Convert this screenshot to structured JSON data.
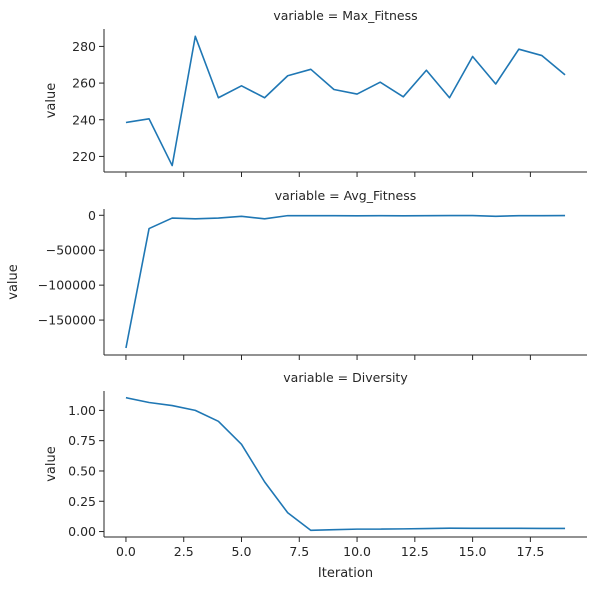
{
  "chart_data": [
    {
      "type": "line",
      "title": "variable = Max_Fitness",
      "xlabel": "",
      "ylabel": "value",
      "x": [
        0,
        1,
        2,
        3,
        4,
        5,
        6,
        7,
        8,
        9,
        10,
        11,
        12,
        13,
        14,
        15,
        16,
        17,
        18,
        19
      ],
      "series": [
        {
          "values": [
            238.5,
            240.5,
            215,
            285.5,
            252,
            258.5,
            252,
            264,
            267.5,
            256.5,
            254,
            260.5,
            252.5,
            267,
            252,
            274.5,
            259.5,
            278.5,
            275,
            264.5
          ]
        }
      ],
      "xlim": [
        -0.95,
        19.95
      ],
      "ylim": [
        211.5,
        289.5
      ],
      "yticks": [
        220,
        240,
        260,
        280
      ],
      "ytick_labels": [
        "220",
        "240",
        "260",
        "280"
      ],
      "xticks": [
        0,
        2.5,
        5,
        7.5,
        10,
        12.5,
        15,
        17.5
      ],
      "xtick_labels": [],
      "grid": false,
      "color": "#1f77b4"
    },
    {
      "type": "line",
      "title": "variable = Avg_Fitness",
      "xlabel": "",
      "ylabel": "value",
      "x": [
        0,
        1,
        2,
        3,
        4,
        5,
        6,
        7,
        8,
        9,
        10,
        11,
        12,
        13,
        14,
        15,
        16,
        17,
        18,
        19
      ],
      "series": [
        {
          "values": [
            -190000,
            -19000,
            -4000,
            -5000,
            -4000,
            -1500,
            -5000,
            -500,
            -500,
            -500,
            -800,
            -500,
            -700,
            -500,
            -400,
            -400,
            -1500,
            -500,
            -600,
            -400
          ]
        }
      ],
      "xlim": [
        -0.95,
        19.95
      ],
      "ylim": [
        -200000,
        9000
      ],
      "yticks": [
        -150000,
        -100000,
        -50000,
        0
      ],
      "ytick_labels": [
        "−150000",
        "−100000",
        "−50000",
        "0"
      ],
      "xticks": [
        0,
        2.5,
        5,
        7.5,
        10,
        12.5,
        15,
        17.5
      ],
      "xtick_labels": [],
      "grid": false,
      "color": "#1f77b4"
    },
    {
      "type": "line",
      "title": "variable = Diversity",
      "xlabel": "Iteration",
      "ylabel": "value",
      "x": [
        0,
        1,
        2,
        3,
        4,
        5,
        6,
        7,
        8,
        9,
        10,
        11,
        12,
        13,
        14,
        15,
        16,
        17,
        18,
        19
      ],
      "series": [
        {
          "values": [
            1.105,
            1.065,
            1.04,
            1.0,
            0.91,
            0.72,
            0.41,
            0.155,
            0.01,
            0.015,
            0.02,
            0.02,
            0.022,
            0.025,
            0.028,
            0.027,
            0.027,
            0.027,
            0.026,
            0.026
          ]
        }
      ],
      "xlim": [
        -0.95,
        19.95
      ],
      "ylim": [
        -0.045,
        1.16
      ],
      "yticks": [
        0.0,
        0.25,
        0.5,
        0.75,
        1.0
      ],
      "ytick_labels": [
        "0.00",
        "0.25",
        "0.50",
        "0.75",
        "1.00"
      ],
      "xticks": [
        0,
        2.5,
        5,
        7.5,
        10,
        12.5,
        15,
        17.5
      ],
      "xtick_labels": [
        "0.0",
        "2.5",
        "5.0",
        "7.5",
        "10.0",
        "12.5",
        "15.0",
        "17.5"
      ],
      "grid": false,
      "color": "#1f77b4"
    }
  ]
}
